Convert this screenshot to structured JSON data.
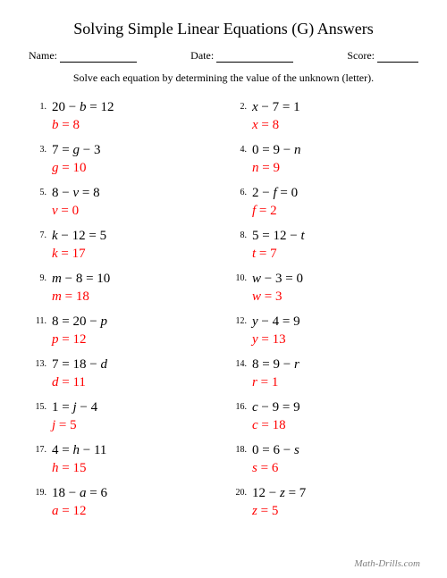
{
  "title": "Solving Simple Linear Equations (G) Answers",
  "header": {
    "name_label": "Name:",
    "date_label": "Date:",
    "score_label": "Score:",
    "name_line_width": 86,
    "date_line_width": 86,
    "score_line_width": 46
  },
  "instructions": "Solve each equation by determining the value of the unknown (letter).",
  "answer_color": "#ff0000",
  "text_color": "#000000",
  "background_color": "#ffffff",
  "footer": "Math-Drills.com",
  "problems": [
    {
      "n": "1.",
      "eq": "20 − b = 12",
      "ans": "b = 8"
    },
    {
      "n": "2.",
      "eq": "x − 7 = 1",
      "ans": "x = 8"
    },
    {
      "n": "3.",
      "eq": "7 = g − 3",
      "ans": "g = 10"
    },
    {
      "n": "4.",
      "eq": "0 = 9 − n",
      "ans": "n = 9"
    },
    {
      "n": "5.",
      "eq": "8 − v = 8",
      "ans": "v = 0"
    },
    {
      "n": "6.",
      "eq": "2 − f = 0",
      "ans": "f = 2"
    },
    {
      "n": "7.",
      "eq": "k − 12 = 5",
      "ans": "k = 17"
    },
    {
      "n": "8.",
      "eq": "5 = 12 − t",
      "ans": "t = 7"
    },
    {
      "n": "9.",
      "eq": "m − 8 = 10",
      "ans": "m = 18"
    },
    {
      "n": "10.",
      "eq": "w − 3 = 0",
      "ans": "w = 3"
    },
    {
      "n": "11.",
      "eq": "8 = 20 − p",
      "ans": "p = 12"
    },
    {
      "n": "12.",
      "eq": "y − 4 = 9",
      "ans": "y = 13"
    },
    {
      "n": "13.",
      "eq": "7 = 18 − d",
      "ans": "d = 11"
    },
    {
      "n": "14.",
      "eq": "8 = 9 − r",
      "ans": "r = 1"
    },
    {
      "n": "15.",
      "eq": "1 = j − 4",
      "ans": "j = 5"
    },
    {
      "n": "16.",
      "eq": "c − 9 = 9",
      "ans": "c = 18"
    },
    {
      "n": "17.",
      "eq": "4 = h − 11",
      "ans": "h = 15"
    },
    {
      "n": "18.",
      "eq": "0 = 6 − s",
      "ans": "s = 6"
    },
    {
      "n": "19.",
      "eq": "18 − a = 6",
      "ans": "a = 12"
    },
    {
      "n": "20.",
      "eq": "12 − z = 7",
      "ans": "z = 5"
    }
  ]
}
